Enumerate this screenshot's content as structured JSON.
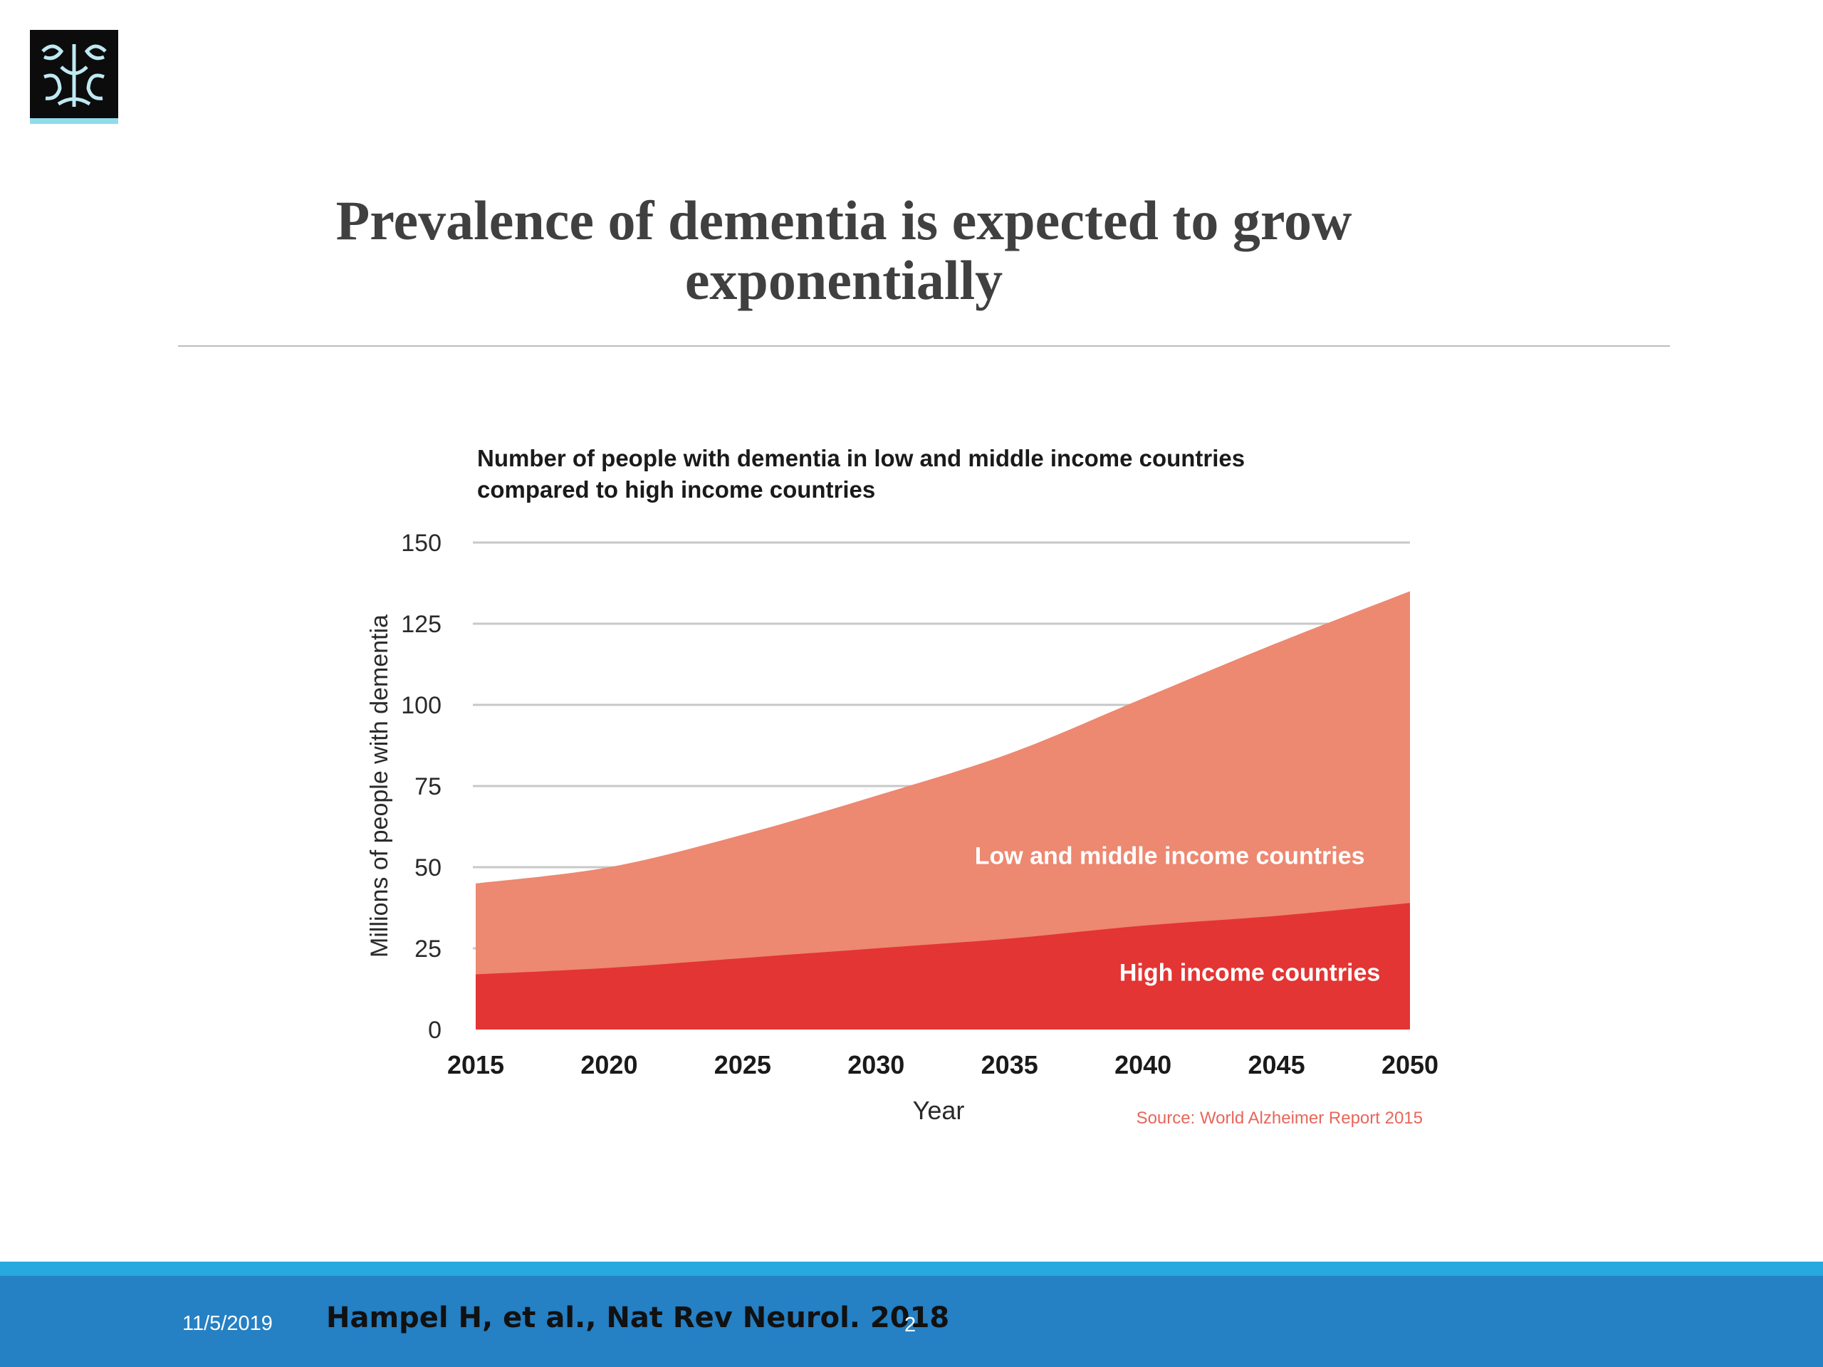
{
  "slide": {
    "title": "Prevalence of dementia is expected to grow exponentially",
    "footer_date": "11/5/2019",
    "footer_citation": "Hampel H, et al., Nat Rev Neurol. 2018",
    "page_number": "2"
  },
  "colors": {
    "low_middle_income": "#ed8871",
    "high_income": "#e33533",
    "footer_bar": "#2580c4",
    "footer_accent": "#27a8df",
    "source_text": "#e8665a"
  },
  "logo": {
    "icon": "university-crest-logo"
  },
  "chart_data": {
    "type": "area",
    "stacked": true,
    "title": "Number of people with dementia in low and middle income countries compared to high income countries",
    "xlabel": "Year",
    "ylabel": "Millions of people with dementia",
    "x": [
      2015,
      2020,
      2025,
      2030,
      2035,
      2040,
      2045,
      2050
    ],
    "xlim": [
      2015,
      2050
    ],
    "ylim": [
      0,
      150
    ],
    "yticks": [
      0,
      25,
      50,
      75,
      100,
      125,
      150
    ],
    "grid": true,
    "series": [
      {
        "name": "High income countries",
        "values": [
          17,
          19,
          22,
          25,
          28,
          32,
          35,
          39
        ]
      },
      {
        "name": "Low and middle income countries",
        "values": [
          28,
          31,
          38,
          47,
          57,
          70,
          84,
          96
        ]
      }
    ],
    "annotations": [
      {
        "text": "Low and middle income countries",
        "x": 2041,
        "y": 51
      },
      {
        "text": "High income countries",
        "x": 2044,
        "y": 15
      }
    ],
    "source": "Source: World Alzheimer Report 2015"
  }
}
